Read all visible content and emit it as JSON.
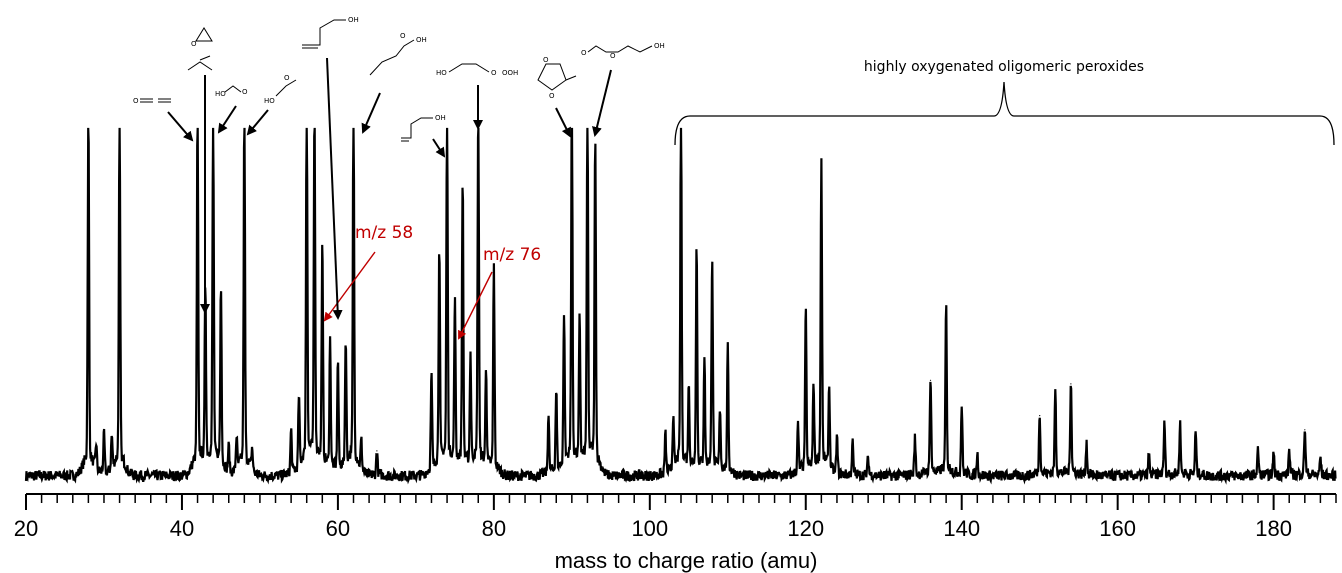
{
  "chart_data": {
    "type": "line",
    "title": "",
    "xlabel": "mass to charge ratio (amu)",
    "ylabel": "",
    "xlim": [
      20,
      188
    ],
    "ylim": [
      0,
      1
    ],
    "grid": false,
    "x_ticks": [
      20,
      40,
      60,
      80,
      100,
      120,
      140,
      160,
      180
    ],
    "x_minor_step": 2,
    "baseline": 0.035,
    "peaks": [
      {
        "mz": 28,
        "h": 0.98
      },
      {
        "mz": 29,
        "h": 0.07
      },
      {
        "mz": 30,
        "h": 0.11
      },
      {
        "mz": 31,
        "h": 0.09
      },
      {
        "mz": 32,
        "h": 0.98
      },
      {
        "mz": 42,
        "h": 0.96
      },
      {
        "mz": 43,
        "h": 0.49
      },
      {
        "mz": 44,
        "h": 0.96
      },
      {
        "mz": 45,
        "h": 0.5
      },
      {
        "mz": 46,
        "h": 0.07
      },
      {
        "mz": 47,
        "h": 0.09
      },
      {
        "mz": 48,
        "h": 0.96
      },
      {
        "mz": 49,
        "h": 0.06
      },
      {
        "mz": 54,
        "h": 0.12
      },
      {
        "mz": 55,
        "h": 0.2
      },
      {
        "mz": 56,
        "h": 0.98
      },
      {
        "mz": 57,
        "h": 0.98
      },
      {
        "mz": 58,
        "h": 0.6
      },
      {
        "mz": 59,
        "h": 0.35
      },
      {
        "mz": 60,
        "h": 0.3
      },
      {
        "mz": 61,
        "h": 0.35
      },
      {
        "mz": 62,
        "h": 0.98
      },
      {
        "mz": 63,
        "h": 0.08
      },
      {
        "mz": 65,
        "h": 0.07
      },
      {
        "mz": 72,
        "h": 0.26
      },
      {
        "mz": 73,
        "h": 0.6
      },
      {
        "mz": 74,
        "h": 0.98
      },
      {
        "mz": 75,
        "h": 0.45
      },
      {
        "mz": 76,
        "h": 0.79
      },
      {
        "mz": 77,
        "h": 0.3
      },
      {
        "mz": 78,
        "h": 0.98
      },
      {
        "mz": 79,
        "h": 0.27
      },
      {
        "mz": 80,
        "h": 0.56
      },
      {
        "mz": 87,
        "h": 0.16
      },
      {
        "mz": 88,
        "h": 0.22
      },
      {
        "mz": 89,
        "h": 0.42
      },
      {
        "mz": 90,
        "h": 0.98
      },
      {
        "mz": 91,
        "h": 0.4
      },
      {
        "mz": 92,
        "h": 0.98
      },
      {
        "mz": 93,
        "h": 0.89
      },
      {
        "mz": 102,
        "h": 0.11
      },
      {
        "mz": 103,
        "h": 0.14
      },
      {
        "mz": 104,
        "h": 0.98
      },
      {
        "mz": 105,
        "h": 0.22
      },
      {
        "mz": 106,
        "h": 0.61
      },
      {
        "mz": 107,
        "h": 0.3
      },
      {
        "mz": 108,
        "h": 0.59
      },
      {
        "mz": 109,
        "h": 0.17
      },
      {
        "mz": 110,
        "h": 0.34
      },
      {
        "mz": 119,
        "h": 0.13
      },
      {
        "mz": 120,
        "h": 0.44
      },
      {
        "mz": 121,
        "h": 0.23
      },
      {
        "mz": 122,
        "h": 0.84
      },
      {
        "mz": 123,
        "h": 0.23
      },
      {
        "mz": 124,
        "h": 0.1
      },
      {
        "mz": 126,
        "h": 0.09
      },
      {
        "mz": 128,
        "h": 0.05
      },
      {
        "mz": 134,
        "h": 0.1
      },
      {
        "mz": 136,
        "h": 0.27
      },
      {
        "mz": 138,
        "h": 0.46
      },
      {
        "mz": 140,
        "h": 0.19
      },
      {
        "mz": 142,
        "h": 0.06
      },
      {
        "mz": 150,
        "h": 0.17
      },
      {
        "mz": 152,
        "h": 0.23
      },
      {
        "mz": 154,
        "h": 0.26
      },
      {
        "mz": 156,
        "h": 0.09
      },
      {
        "mz": 164,
        "h": 0.06
      },
      {
        "mz": 166,
        "h": 0.14
      },
      {
        "mz": 168,
        "h": 0.14
      },
      {
        "mz": 170,
        "h": 0.12
      },
      {
        "mz": 178,
        "h": 0.07
      },
      {
        "mz": 180,
        "h": 0.06
      },
      {
        "mz": 182,
        "h": 0.07
      },
      {
        "mz": 184,
        "h": 0.13
      },
      {
        "mz": 186,
        "h": 0.05
      }
    ],
    "annotations": [
      {
        "text": "m/z 58",
        "target_mz": 58,
        "color": "#c00000"
      },
      {
        "text": "m/z 76",
        "target_mz": 76,
        "color": "#c00000"
      }
    ],
    "bracket": {
      "text": "highly oxygenated oligomeric peroxides",
      "from_mz": 103,
      "to_mz": 188
    },
    "structure_arrows": [
      {
        "name": "ketene",
        "target_mz": 42
      },
      {
        "name": "oxirane-and-acetaldehyde",
        "target_mz": 44
      },
      {
        "name": "formic-acid",
        "target_mz": 46
      },
      {
        "name": "methyl-hydroperoxide",
        "target_mz": 48
      },
      {
        "name": "hydroxy-propanal",
        "target_mz": 60
      },
      {
        "name": "ethyl-hydroperoxide",
        "target_mz": 62
      },
      {
        "name": "hydroxy-propanal-small",
        "target_mz": 74
      },
      {
        "name": "hydroxyethyl-hydroperoxide",
        "target_mz": 78
      },
      {
        "name": "methyl-dioxolane",
        "target_mz": 90
      },
      {
        "name": "formyloxy-methyl-hydroperoxide",
        "target_mz": 92
      }
    ],
    "molecule_labels": {
      "oh": "OH",
      "ho": "HO",
      "o": "O",
      "ooh": "OOH"
    },
    "colors": {
      "line": "#000000",
      "annotation": "#c00000"
    }
  }
}
